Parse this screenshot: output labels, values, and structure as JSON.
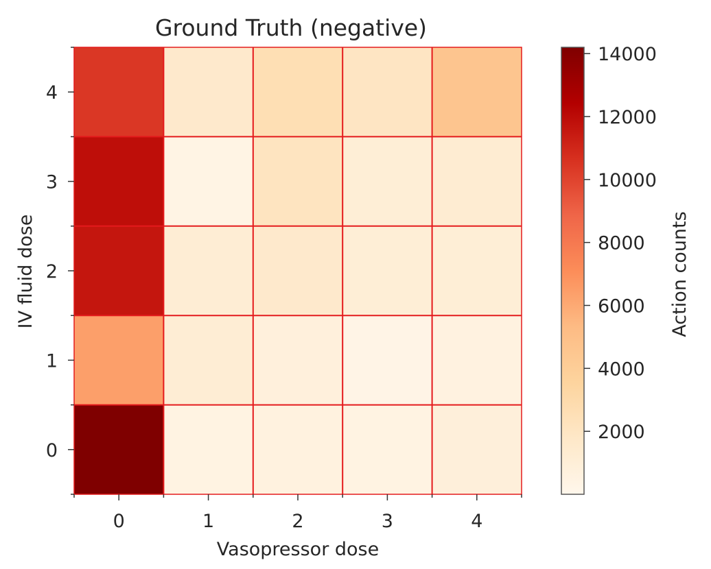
{
  "chart_data": {
    "type": "heatmap",
    "title": "Ground Truth (negative)",
    "xlabel": "Vasopressor dose",
    "ylabel": "IV fluid dose",
    "x_categories": [
      "0",
      "1",
      "2",
      "3",
      "4"
    ],
    "y_categories": [
      "0",
      "1",
      "2",
      "3",
      "4"
    ],
    "colorbar": {
      "label": "Action counts",
      "min": 0,
      "max": 14200,
      "ticks": [
        2000,
        4000,
        6000,
        8000,
        10000,
        12000,
        14000
      ],
      "tick_labels": [
        "2000",
        "4000",
        "6000",
        "8000",
        "10000",
        "12000",
        "14000"
      ],
      "colormap": "OrRd"
    },
    "values": [
      [
        14200,
        500,
        650,
        500,
        900
      ],
      [
        6400,
        1200,
        800,
        300,
        600
      ],
      [
        11600,
        1200,
        1600,
        1100,
        1100
      ],
      [
        11900,
        400,
        2100,
        1100,
        1300
      ],
      [
        10400,
        1600,
        2600,
        2000,
        4600
      ]
    ],
    "grid": true,
    "grid_color": "#e41a1c",
    "colors": {
      "low": "#fff7ec",
      "mid": "#fc8d59",
      "high": "#7f0000"
    }
  }
}
